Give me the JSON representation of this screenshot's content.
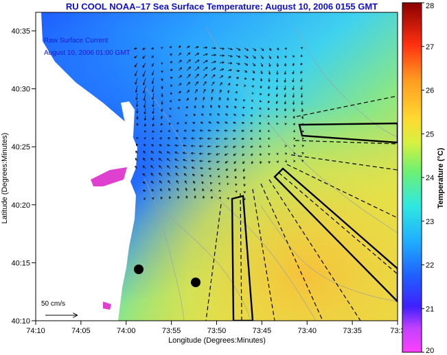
{
  "title": "RU COOL  NOAA–17  Sea Surface Temperature:  August 10, 2006 0155 GMT",
  "overlay": {
    "line1": "Raw Surface Current",
    "line2": "August 10, 2006 01:00 GMT"
  },
  "scale_bar_label": "50 cm/s",
  "axes": {
    "xlabel": "Longitude (Degrees:Minutes)",
    "ylabel": "Latitude (Degrees:Minutes)",
    "x_ticks": [
      "74:10",
      "74:05",
      "74:00",
      "73:55",
      "73:50",
      "73:45",
      "73:40",
      "73:35",
      "73:3"
    ],
    "y_ticks": [
      "40:35",
      "40:30",
      "40:25",
      "40:20",
      "40:15",
      "40:10"
    ]
  },
  "colorbar": {
    "label": "Temperature (°C)",
    "ticks": [
      "28",
      "27",
      "26",
      "25",
      "24",
      "23",
      "22",
      "21",
      "20"
    ],
    "min": 20,
    "max": 28
  },
  "colors": {
    "land": "#ffffff",
    "water_cold": "#1e5cff",
    "water_mid": "#35c6ff",
    "water_warm": "#f2d43a",
    "title": "#1010c8"
  }
}
